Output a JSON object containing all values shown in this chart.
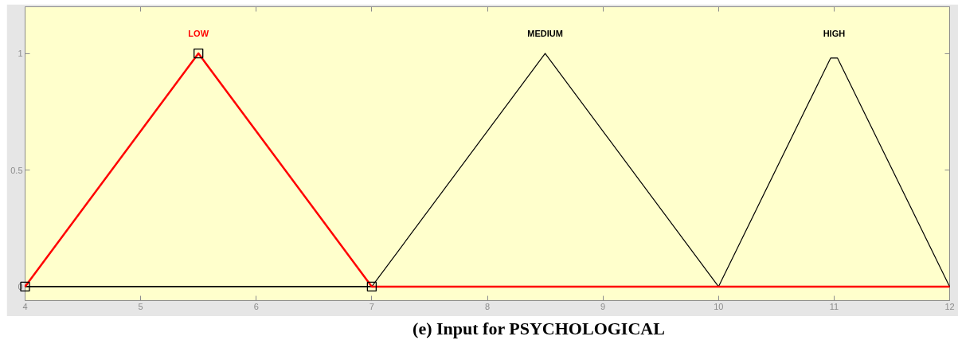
{
  "chart_data": {
    "type": "line",
    "title": "(e) Input for PSYCHOLOGICAL",
    "xlim": [
      4,
      12
    ],
    "ylim": [
      -0.06,
      1.2
    ],
    "xticks": [
      4,
      5,
      6,
      7,
      8,
      9,
      10,
      11,
      12
    ],
    "yticks": [
      0,
      0.5,
      1
    ],
    "series": [
      {
        "name": "LOW",
        "color": "#ff0000",
        "x": [
          4,
          5.5,
          7,
          12
        ],
        "values": [
          0,
          1,
          0,
          0
        ]
      },
      {
        "name": "MEDIUM",
        "color": "#000000",
        "x": [
          4,
          7,
          8.5,
          10,
          12
        ],
        "values": [
          0,
          0,
          1,
          0,
          0
        ]
      },
      {
        "name": "HIGH",
        "color": "#000000",
        "x": [
          4,
          10,
          10.97,
          11.03,
          12
        ],
        "values": [
          0,
          0,
          0.98,
          0.98,
          0
        ]
      },
      {
        "type": "scatter",
        "color": "#000000",
        "marker": "square",
        "x": [
          4,
          5.5,
          7
        ],
        "values": [
          0,
          1,
          0
        ]
      }
    ]
  }
}
